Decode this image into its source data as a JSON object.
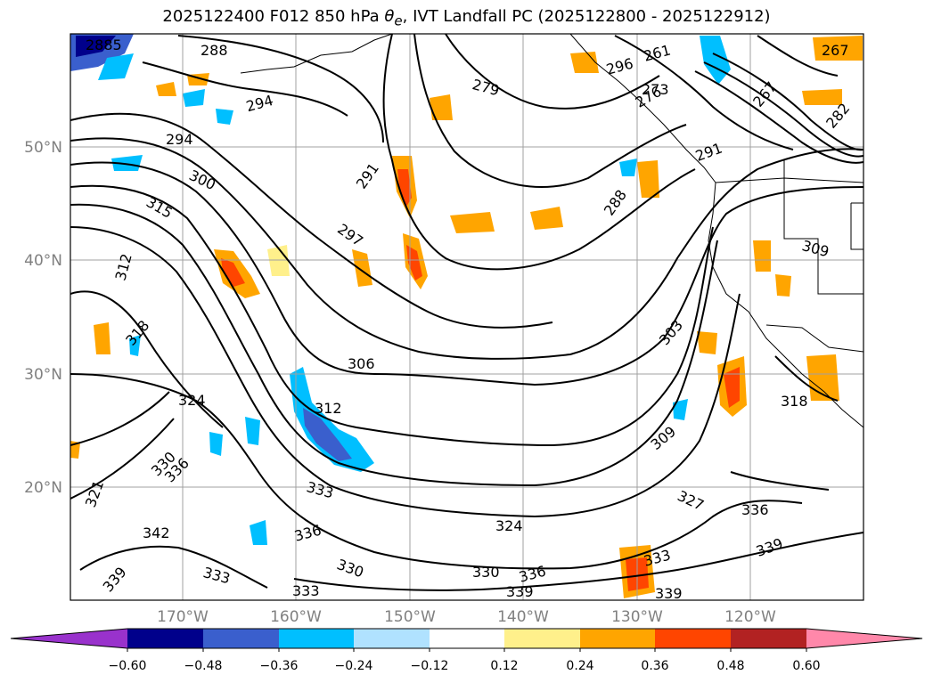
{
  "title": {
    "prefix": "2025122400 F012 850 hPa ",
    "theta": "θ",
    "theta_sub": "e",
    "suffix": ", IVT Landfall PC (2025122800 - 2025122912)"
  },
  "lat_labels": [
    "50°N",
    "40°N",
    "30°N",
    "20°N"
  ],
  "lon_labels": [
    "170°W",
    "160°W",
    "150°W",
    "140°W",
    "130°W",
    "120°W"
  ],
  "colorbar": {
    "colors": [
      "#9932cc",
      "#00008b",
      "#3a5fcd",
      "#00bfff",
      "#b0e2ff",
      "#ffffff",
      "#fff08b",
      "#ffa500",
      "#ff4500",
      "#b22222",
      "#ff88aa"
    ],
    "ticks": [
      "−0.60",
      "−0.48",
      "−0.36",
      "−0.24",
      "−0.12",
      "0.12",
      "0.24",
      "0.36",
      "0.48",
      "0.60"
    ]
  },
  "contour_labels": [
    {
      "text": "288"
    },
    {
      "text": "294"
    },
    {
      "text": "294"
    },
    {
      "text": "300"
    },
    {
      "text": "315"
    },
    {
      "text": "312"
    },
    {
      "text": "318"
    },
    {
      "text": "324"
    },
    {
      "text": "330"
    },
    {
      "text": "336"
    },
    {
      "text": "321"
    },
    {
      "text": "342"
    },
    {
      "text": "339"
    },
    {
      "text": "333"
    },
    {
      "text": "333"
    },
    {
      "text": "336"
    },
    {
      "text": "330"
    },
    {
      "text": "333"
    },
    {
      "text": "330"
    },
    {
      "text": "336"
    },
    {
      "text": "339"
    },
    {
      "text": "324"
    },
    {
      "text": "312"
    },
    {
      "text": "306"
    },
    {
      "text": "297"
    },
    {
      "text": "291"
    },
    {
      "text": "279"
    },
    {
      "text": "288"
    },
    {
      "text": "291"
    },
    {
      "text": "303"
    },
    {
      "text": "309"
    },
    {
      "text": "327"
    },
    {
      "text": "336"
    },
    {
      "text": "339"
    },
    {
      "text": "333"
    },
    {
      "text": "339"
    },
    {
      "text": "318"
    },
    {
      "text": "309"
    },
    {
      "text": "261"
    },
    {
      "text": "273"
    },
    {
      "text": "276"
    },
    {
      "text": "267"
    },
    {
      "text": "282"
    },
    {
      "text": "296"
    },
    {
      "text": "2885"
    },
    {
      "text": "267"
    }
  ]
}
